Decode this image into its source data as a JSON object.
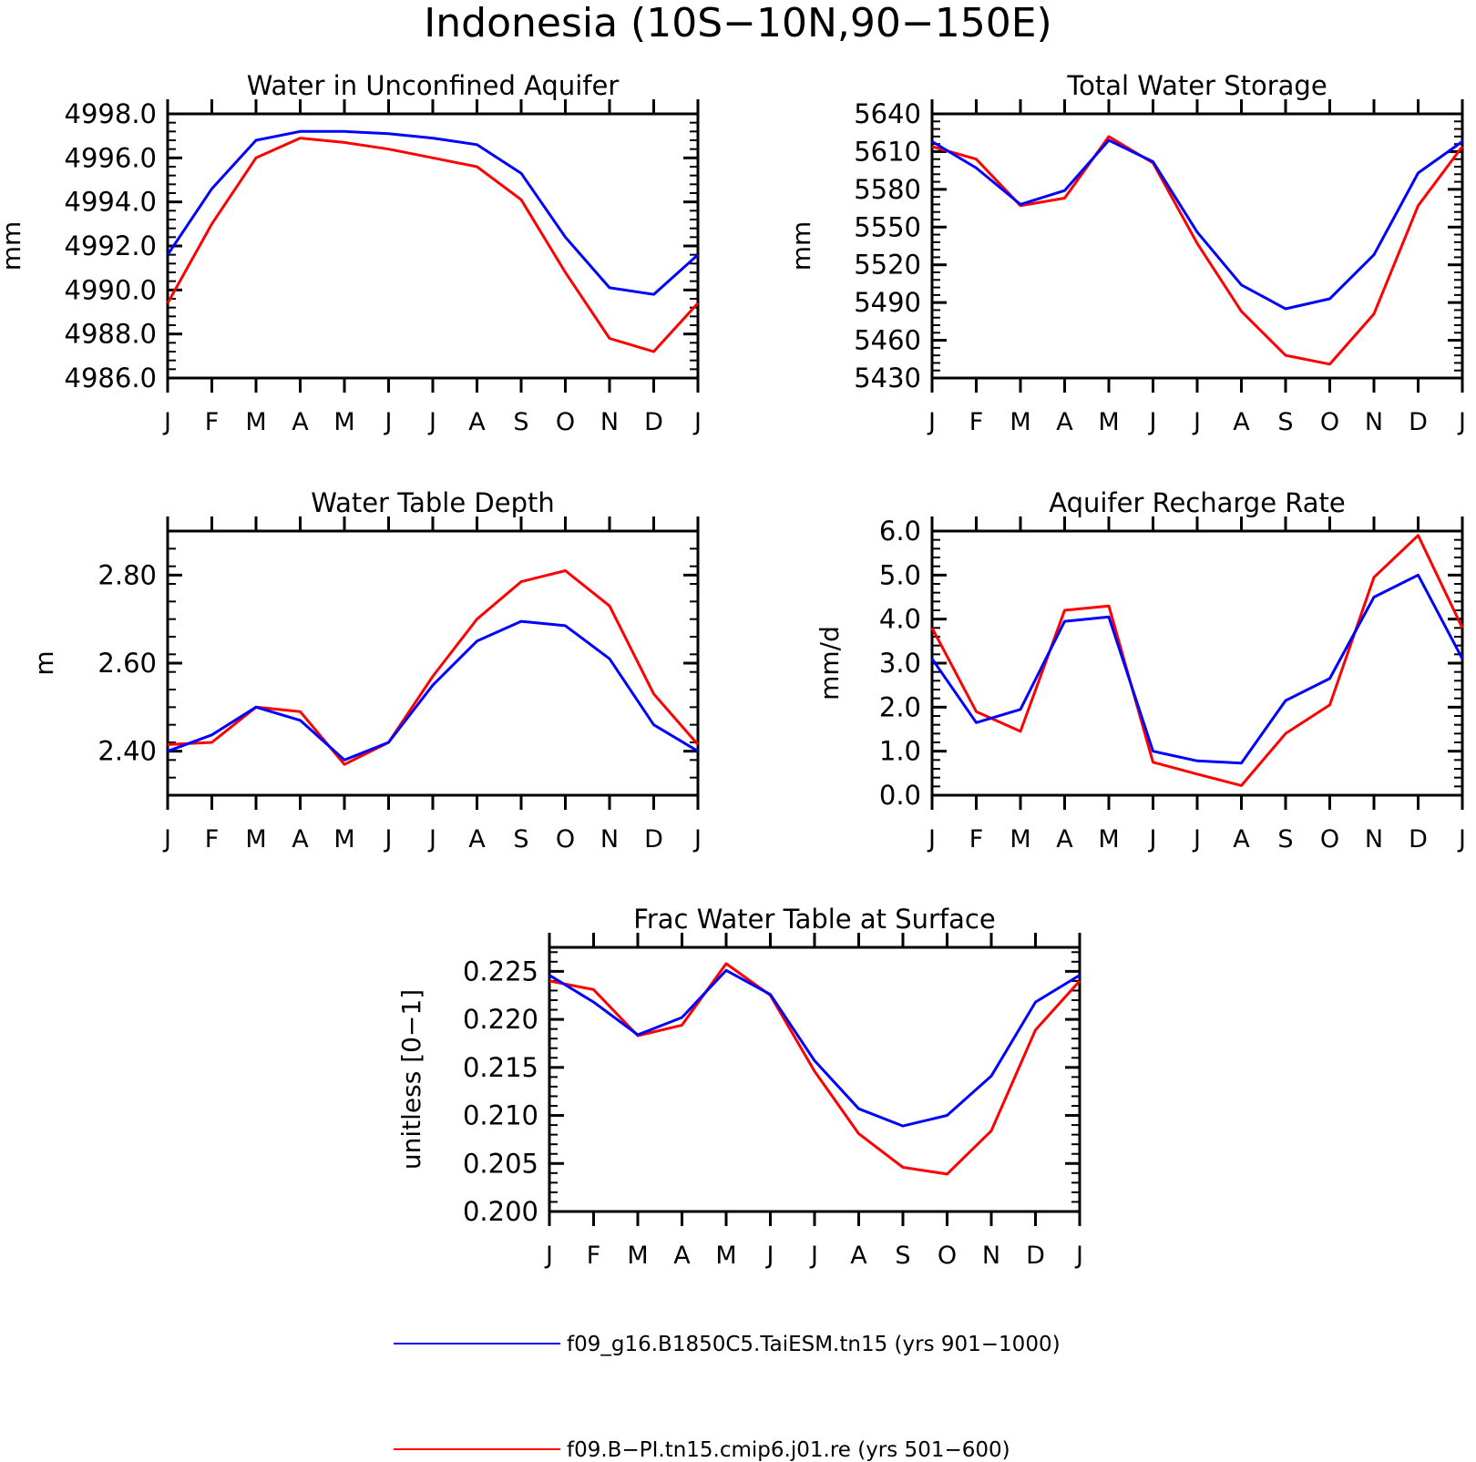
{
  "figure": {
    "title": "Indonesia (10S−10N,90−150E)"
  },
  "legend": [
    {
      "label": "f09_g16.B1850C5.TaiESM.tn15 (yrs 901−1000)",
      "color": "#0000ff"
    },
    {
      "label": "f09.B−PI.tn15.cmip6.j01.re (yrs 501−600)",
      "color": "#ff0000"
    }
  ],
  "chart_data": [
    {
      "type": "line",
      "title": "Water in Unconfined Aquifer",
      "xlabel": "",
      "ylabel": "mm",
      "categories": [
        "J",
        "F",
        "M",
        "A",
        "M",
        "J",
        "J",
        "A",
        "S",
        "O",
        "N",
        "D",
        "J"
      ],
      "ylim": [
        4986.0,
        4998.0
      ],
      "yticks": [
        4986.0,
        4988.0,
        4990.0,
        4992.0,
        4994.0,
        4996.0,
        4998.0
      ],
      "ytick_labels": [
        "4986.0",
        "4988.0",
        "4990.0",
        "4992.0",
        "4994.0",
        "4996.0",
        "4998.0"
      ],
      "series": [
        {
          "color": "#0000ff",
          "values": [
            4991.6,
            4994.6,
            4996.8,
            4997.2,
            4997.2,
            4997.1,
            4996.9,
            4996.6,
            4995.3,
            4992.4,
            4990.1,
            4989.8,
            4991.6
          ]
        },
        {
          "color": "#ff0000",
          "values": [
            4989.4,
            4993.0,
            4996.0,
            4996.9,
            4996.7,
            4996.4,
            4996.0,
            4995.6,
            4994.1,
            4990.8,
            4987.8,
            4987.2,
            4989.4
          ]
        }
      ]
    },
    {
      "type": "line",
      "title": "Total Water Storage",
      "xlabel": "",
      "ylabel": "mm",
      "categories": [
        "J",
        "F",
        "M",
        "A",
        "M",
        "J",
        "J",
        "A",
        "S",
        "O",
        "N",
        "D",
        "J"
      ],
      "ylim": [
        5430,
        5640
      ],
      "yticks": [
        5430,
        5460,
        5490,
        5520,
        5550,
        5580,
        5610,
        5640
      ],
      "ytick_labels": [
        "5430",
        "5460",
        "5490",
        "5520",
        "5550",
        "5580",
        "5610",
        "5640"
      ],
      "series": [
        {
          "color": "#0000ff",
          "values": [
            5618,
            5597,
            5568,
            5579,
            5619,
            5602,
            5546,
            5504,
            5485,
            5493,
            5528,
            5593,
            5618
          ]
        },
        {
          "color": "#ff0000",
          "values": [
            5614,
            5604,
            5567,
            5573,
            5622,
            5601,
            5537,
            5483,
            5448,
            5441,
            5481,
            5567,
            5614
          ]
        }
      ]
    },
    {
      "type": "line",
      "title": "Water Table Depth",
      "xlabel": "",
      "ylabel": "m",
      "categories": [
        "J",
        "F",
        "M",
        "A",
        "M",
        "J",
        "J",
        "A",
        "S",
        "O",
        "N",
        "D",
        "J"
      ],
      "ylim": [
        2.3,
        2.9
      ],
      "yticks": [
        2.4,
        2.6,
        2.8
      ],
      "ytick_labels": [
        "2.40",
        "2.60",
        "2.80"
      ],
      "series": [
        {
          "color": "#0000ff",
          "values": [
            2.4,
            2.437,
            2.5,
            2.47,
            2.38,
            2.42,
            2.55,
            2.65,
            2.695,
            2.685,
            2.61,
            2.46,
            2.4
          ]
        },
        {
          "color": "#ff0000",
          "values": [
            2.415,
            2.42,
            2.5,
            2.49,
            2.37,
            2.42,
            2.57,
            2.7,
            2.785,
            2.81,
            2.73,
            2.53,
            2.415
          ]
        }
      ]
    },
    {
      "type": "line",
      "title": "Aquifer Recharge Rate",
      "xlabel": "",
      "ylabel": "mm/d",
      "categories": [
        "J",
        "F",
        "M",
        "A",
        "M",
        "J",
        "J",
        "A",
        "S",
        "O",
        "N",
        "D",
        "J"
      ],
      "ylim": [
        0.0,
        6.0
      ],
      "yticks": [
        0.0,
        1.0,
        2.0,
        3.0,
        4.0,
        5.0,
        6.0
      ],
      "ytick_labels": [
        "0.0",
        "1.0",
        "2.0",
        "3.0",
        "4.0",
        "5.0",
        "6.0"
      ],
      "series": [
        {
          "color": "#0000ff",
          "values": [
            3.1,
            1.65,
            1.95,
            3.95,
            4.05,
            1.0,
            0.78,
            0.73,
            2.15,
            2.65,
            4.5,
            5.0,
            3.1
          ]
        },
        {
          "color": "#ff0000",
          "values": [
            3.8,
            1.9,
            1.45,
            4.2,
            4.3,
            0.75,
            0.48,
            0.22,
            1.4,
            2.05,
            4.95,
            5.9,
            3.8
          ]
        }
      ]
    },
    {
      "type": "line",
      "title": "Frac Water Table at Surface",
      "xlabel": "",
      "ylabel": "unitless [0−1]",
      "categories": [
        "J",
        "F",
        "M",
        "A",
        "M",
        "J",
        "J",
        "A",
        "S",
        "O",
        "N",
        "D",
        "J"
      ],
      "ylim": [
        0.2,
        0.2275
      ],
      "yticks": [
        0.2,
        0.205,
        0.21,
        0.215,
        0.22,
        0.225
      ],
      "ytick_labels": [
        "0.200",
        "0.205",
        "0.210",
        "0.215",
        "0.220",
        "0.225"
      ],
      "series": [
        {
          "color": "#0000ff",
          "values": [
            0.2246,
            0.2218,
            0.2184,
            0.2202,
            0.2251,
            0.2226,
            0.2157,
            0.2107,
            0.2089,
            0.21,
            0.2141,
            0.2218,
            0.2246
          ]
        },
        {
          "color": "#ff0000",
          "values": [
            0.224,
            0.2231,
            0.2183,
            0.2194,
            0.2258,
            0.2225,
            0.2146,
            0.2081,
            0.2046,
            0.2039,
            0.2084,
            0.2189,
            0.224
          ]
        }
      ]
    }
  ]
}
